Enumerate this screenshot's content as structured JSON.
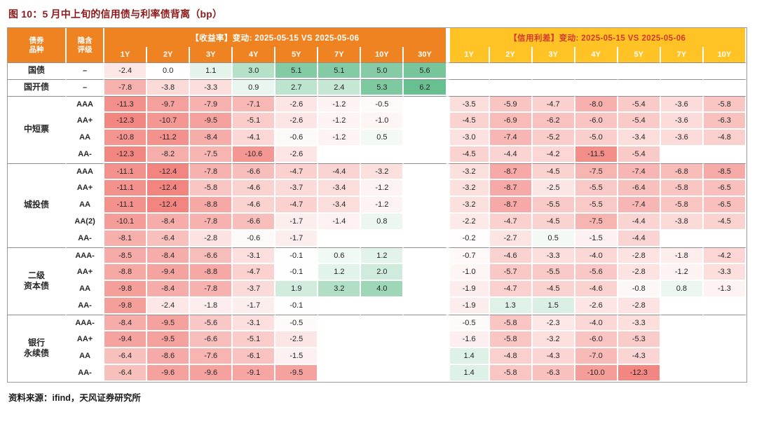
{
  "page": {
    "title": "图 10：5 月中上旬的信用债与利率债背离（bp）",
    "source": "资料来源：ifind，天风证券研究所"
  },
  "chart_data": {
    "type": "heatmap",
    "title": "图 10：5 月中上旬的信用债与利率债背离（bp）",
    "row_header_labels": [
      "债券\n品种",
      "隐含\n评级"
    ],
    "sections": [
      {
        "name": "【收益率】变动: 2025-05-15 VS 2025-05-06",
        "tenors": [
          "1Y",
          "2Y",
          "3Y",
          "4Y",
          "5Y",
          "7Y",
          "10Y",
          "30Y"
        ]
      },
      {
        "name": "【信用利差】变动: 2025-05-15 VS 2025-05-06",
        "tenors": [
          "1Y",
          "2Y",
          "3Y",
          "4Y",
          "5Y",
          "7Y",
          "10Y"
        ]
      }
    ],
    "color_scale": {
      "neg_limit": -12.5,
      "pos_limit": 6.5,
      "neg_color": "#F2847F",
      "pos_color": "#61BD8B"
    },
    "groups": [
      {
        "name": "国债",
        "rows": [
          {
            "rating": "–",
            "y": [
              -2.4,
              0.0,
              1.1,
              3.0,
              5.1,
              5.1,
              5.0,
              5.6
            ],
            "s": [
              null,
              null,
              null,
              null,
              null,
              null,
              null
            ]
          }
        ]
      },
      {
        "name": "国开债",
        "rows": [
          {
            "rating": "–",
            "y": [
              -7.8,
              -3.8,
              -3.3,
              0.9,
              2.7,
              2.4,
              5.3,
              6.2
            ],
            "s": [
              null,
              null,
              null,
              null,
              null,
              null,
              null
            ]
          }
        ]
      },
      {
        "name": "中短票",
        "rows": [
          {
            "rating": "AAA",
            "y": [
              -11.3,
              -9.7,
              -7.9,
              -7.1,
              -2.6,
              -1.2,
              -0.5,
              null
            ],
            "s": [
              -3.5,
              -5.9,
              -4.7,
              -8.0,
              -5.4,
              -3.6,
              -5.8
            ]
          },
          {
            "rating": "AA+",
            "y": [
              -12.3,
              -10.7,
              -9.5,
              -5.1,
              -2.6,
              -1.2,
              -1.0,
              null
            ],
            "s": [
              -4.5,
              -6.9,
              -6.2,
              -6.0,
              -5.4,
              -3.6,
              -6.3
            ]
          },
          {
            "rating": "AA",
            "y": [
              -10.8,
              -11.2,
              -8.4,
              -4.1,
              -0.6,
              -1.2,
              0.5,
              null
            ],
            "s": [
              -3.0,
              -7.4,
              -5.2,
              -5.0,
              -3.4,
              -3.6,
              -4.8
            ]
          },
          {
            "rating": "AA-",
            "y": [
              -12.3,
              -8.2,
              -7.5,
              -10.6,
              -2.6,
              null,
              null,
              null
            ],
            "s": [
              -4.5,
              -4.4,
              -4.2,
              -11.5,
              -5.4,
              null,
              null
            ]
          }
        ]
      },
      {
        "name": "城投债",
        "rows": [
          {
            "rating": "AAA",
            "y": [
              -11.1,
              -12.4,
              -7.8,
              -6.6,
              -4.7,
              -4.4,
              -3.2,
              null
            ],
            "s": [
              -3.2,
              -8.7,
              -4.5,
              -7.5,
              -7.4,
              -6.8,
              -8.5
            ]
          },
          {
            "rating": "AA+",
            "y": [
              -11.1,
              -12.4,
              -5.8,
              -4.6,
              -3.7,
              -3.4,
              -1.2,
              null
            ],
            "s": [
              -3.2,
              -8.7,
              -2.5,
              -5.5,
              -6.4,
              -5.8,
              -6.5
            ]
          },
          {
            "rating": "AA",
            "y": [
              -11.1,
              -12.4,
              -8.8,
              -4.6,
              -4.7,
              -3.4,
              -1.2,
              null
            ],
            "s": [
              -3.2,
              -8.7,
              -5.5,
              -5.5,
              -7.4,
              -5.8,
              -6.5
            ]
          },
          {
            "rating": "AA(2)",
            "y": [
              -10.1,
              -8.4,
              -7.8,
              -6.6,
              -1.7,
              -1.4,
              0.8,
              null
            ],
            "s": [
              -2.2,
              -4.7,
              -4.5,
              -7.5,
              -4.4,
              -3.8,
              -4.5
            ]
          },
          {
            "rating": "AA-",
            "y": [
              -8.1,
              -6.4,
              -2.8,
              -0.6,
              -1.7,
              null,
              null,
              null
            ],
            "s": [
              -0.2,
              -2.7,
              0.5,
              -1.5,
              -4.4,
              null,
              null
            ]
          }
        ]
      },
      {
        "name": "二级资本债",
        "label": "二级\n资本债",
        "rows": [
          {
            "rating": "AAA-",
            "y": [
              -8.5,
              -8.4,
              -6.6,
              -3.1,
              -0.1,
              0.6,
              1.2,
              null
            ],
            "s": [
              -0.7,
              -4.6,
              -3.3,
              -4.0,
              -2.8,
              -1.8,
              -4.2
            ]
          },
          {
            "rating": "AA+",
            "y": [
              -8.8,
              -9.4,
              -8.8,
              -4.7,
              -0.1,
              1.2,
              2.0,
              null
            ],
            "s": [
              -1.0,
              -5.7,
              -5.5,
              -5.6,
              -2.8,
              -1.2,
              -3.3
            ]
          },
          {
            "rating": "AA",
            "y": [
              -9.8,
              -8.4,
              -7.8,
              -3.7,
              1.9,
              3.2,
              4.0,
              null
            ],
            "s": [
              -1.9,
              -4.7,
              -4.5,
              -4.6,
              -0.8,
              0.8,
              -1.3
            ]
          },
          {
            "rating": "AA-",
            "y": [
              -9.8,
              -2.4,
              -1.8,
              -1.7,
              -0.1,
              null,
              null,
              null
            ],
            "s": [
              -1.9,
              1.3,
              1.5,
              -2.6,
              -2.8,
              null,
              null
            ]
          }
        ]
      },
      {
        "name": "银行永续债",
        "label": "银行\n永续债",
        "rows": [
          {
            "rating": "AAA-",
            "y": [
              -8.4,
              -9.5,
              -5.6,
              -3.1,
              -0.5,
              null,
              null,
              null
            ],
            "s": [
              -0.5,
              -5.8,
              -2.3,
              -4.0,
              -3.3,
              null,
              null
            ]
          },
          {
            "rating": "AA+",
            "y": [
              -9.4,
              -9.5,
              -6.6,
              -5.1,
              -2.5,
              null,
              null,
              null
            ],
            "s": [
              -1.6,
              -5.8,
              -3.2,
              -6.0,
              -5.3,
              null,
              null
            ]
          },
          {
            "rating": "AA",
            "y": [
              -6.4,
              -8.6,
              -7.6,
              -6.1,
              -1.5,
              null,
              null,
              null
            ],
            "s": [
              1.4,
              -4.8,
              -4.3,
              -7.0,
              -4.3,
              null,
              null
            ]
          },
          {
            "rating": "AA-",
            "y": [
              -6.4,
              -9.6,
              -9.6,
              -9.1,
              -9.5,
              null,
              null,
              null
            ],
            "s": [
              1.4,
              -5.8,
              -6.3,
              -10.0,
              -12.3,
              null,
              null
            ]
          }
        ]
      }
    ]
  }
}
